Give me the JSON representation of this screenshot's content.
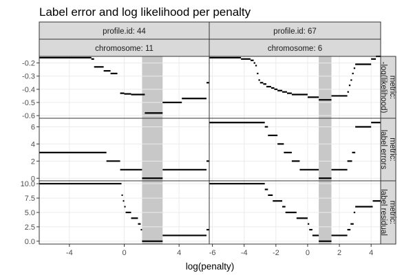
{
  "chart_data": {
    "type": "line",
    "title": "Label error and log likelihood per penalty",
    "xlabel": "log(penalty)",
    "ylabel": "",
    "grid": true,
    "legend": "none",
    "columns": [
      {
        "profile_label": "profile.id: 44",
        "chromosome_label": "chromosome: 11",
        "xlim": [
          -6.2,
          6.2
        ],
        "x_ticks": [
          -4,
          0,
          4
        ],
        "x_tick_labels": [
          "-4",
          "0",
          "4"
        ],
        "min_error_interval": [
          1.3,
          2.8
        ]
      },
      {
        "profile_label": "profile.id: 67",
        "chromosome_label": "chromosome: 6",
        "xlim": [
          -6.2,
          4.6
        ],
        "x_ticks": [
          -6,
          -4,
          -2,
          0,
          2,
          4
        ],
        "x_tick_labels": [
          "-6",
          "-4",
          "-2",
          "0",
          "2",
          "4"
        ],
        "min_error_interval": [
          0.7,
          1.5
        ]
      }
    ],
    "rows": [
      {
        "label_line1": "metric:",
        "label_line2": "-log(likelihood)",
        "ylim": [
          -0.62,
          -0.15
        ],
        "y_ticks": [
          -0.2,
          -0.3,
          -0.4,
          -0.5,
          -0.6
        ],
        "y_tick_labels": [
          "-0.2",
          "-0.3",
          "-0.4",
          "-0.5",
          "-0.6"
        ]
      },
      {
        "label_line1": "metric:",
        "label_line2": "label errors",
        "ylim": [
          -0.3,
          7.0
        ],
        "y_ticks": [
          0,
          2,
          4,
          6
        ],
        "y_tick_labels": [
          "0",
          "2",
          "4",
          "6"
        ]
      },
      {
        "label_line1": "metric:",
        "label_line2": "label residual",
        "ylim": [
          -0.5,
          10.5
        ],
        "y_ticks": [
          0,
          2.5,
          5,
          7.5,
          10
        ],
        "y_tick_labels": [
          "0.0",
          "2.5",
          "5.0",
          "7.5",
          "10.0"
        ]
      }
    ],
    "series": [
      {
        "row": 0,
        "col": 0,
        "segments": [
          [
            -6.2,
            -0.16,
            -2.4
          ],
          [
            -2.4,
            -0.17,
            -2.2
          ],
          [
            -2.2,
            -0.23,
            -1.5
          ],
          [
            -1.5,
            -0.26,
            -1.0
          ],
          [
            -1.0,
            -0.28,
            -0.5
          ],
          [
            -0.3,
            -0.43,
            0.0
          ],
          [
            0.0,
            -0.435,
            0.5
          ],
          [
            0.5,
            -0.44,
            1.5
          ],
          [
            1.5,
            -0.58,
            2.8
          ],
          [
            2.8,
            -0.5,
            4.2
          ],
          [
            4.2,
            -0.47,
            6.0
          ],
          [
            6.0,
            -0.35,
            6.2
          ]
        ]
      },
      {
        "row": 0,
        "col": 1,
        "segments": [
          [
            -6.2,
            -0.16,
            -4.2
          ],
          [
            -4.2,
            -0.17,
            -3.6
          ],
          [
            -3.6,
            -0.18,
            -3.4
          ],
          [
            -3.4,
            -0.2,
            -3.3
          ],
          [
            -3.3,
            -0.22,
            -3.2
          ],
          [
            -3.2,
            -0.28,
            -3.1
          ],
          [
            -3.1,
            -0.33,
            -3.0
          ],
          [
            -3.0,
            -0.35,
            -2.8
          ],
          [
            -2.8,
            -0.36,
            -2.6
          ],
          [
            -2.6,
            -0.38,
            -2.3
          ],
          [
            -2.3,
            -0.39,
            -2.1
          ],
          [
            -2.1,
            -0.4,
            -1.9
          ],
          [
            -1.9,
            -0.41,
            -1.6
          ],
          [
            -1.6,
            -0.42,
            -1.3
          ],
          [
            -1.3,
            -0.43,
            -1.0
          ],
          [
            -1.0,
            -0.44,
            0.0
          ],
          [
            0.0,
            -0.46,
            0.7
          ],
          [
            0.7,
            -0.48,
            1.5
          ],
          [
            1.5,
            -0.45,
            2.5
          ],
          [
            2.5,
            -0.42,
            2.6
          ],
          [
            2.6,
            -0.37,
            2.7
          ],
          [
            2.7,
            -0.33,
            2.8
          ],
          [
            2.8,
            -0.28,
            2.9
          ],
          [
            2.9,
            -0.24,
            3.0
          ],
          [
            3.0,
            -0.21,
            4.0
          ],
          [
            4.0,
            -0.17,
            4.3
          ],
          [
            4.3,
            -0.15,
            4.6
          ]
        ]
      },
      {
        "row": 1,
        "col": 0,
        "segments": [
          [
            -6.2,
            3,
            -1.3
          ],
          [
            -1.3,
            2,
            -0.3
          ],
          [
            -0.3,
            1,
            1.3
          ],
          [
            1.3,
            0,
            2.8
          ],
          [
            2.8,
            1,
            6.0
          ],
          [
            6.0,
            2,
            6.2
          ]
        ]
      },
      {
        "row": 1,
        "col": 1,
        "segments": [
          [
            -6.2,
            6.5,
            -2.7
          ],
          [
            -2.7,
            6,
            -2.5
          ],
          [
            -2.5,
            5,
            -1.9
          ],
          [
            -1.9,
            4,
            -1.5
          ],
          [
            -1.5,
            3,
            -1.0
          ],
          [
            -1.0,
            2,
            -0.5
          ],
          [
            -0.5,
            1,
            0.7
          ],
          [
            0.7,
            0,
            1.5
          ],
          [
            1.5,
            1,
            2.5
          ],
          [
            2.5,
            2,
            2.8
          ],
          [
            2.8,
            3,
            3.0
          ],
          [
            3.0,
            4,
            3.0
          ],
          [
            3.0,
            6,
            4.0
          ],
          [
            4.0,
            6.5,
            4.6
          ]
        ]
      },
      {
        "row": 2,
        "col": 0,
        "segments": [
          [
            -6.2,
            10,
            -0.2
          ],
          [
            -0.2,
            8,
            -0.1
          ],
          [
            -0.1,
            7,
            0.0
          ],
          [
            0.0,
            6,
            0.1
          ],
          [
            0.1,
            5,
            0.5
          ],
          [
            0.5,
            4,
            1.0
          ],
          [
            1.0,
            3,
            1.2
          ],
          [
            1.2,
            2,
            1.3
          ],
          [
            1.3,
            0,
            2.8
          ],
          [
            2.8,
            1,
            6.0
          ],
          [
            6.0,
            2,
            6.2
          ]
        ]
      },
      {
        "row": 2,
        "col": 1,
        "segments": [
          [
            -6.2,
            10,
            -2.7
          ],
          [
            -2.7,
            9,
            -2.5
          ],
          [
            -2.5,
            8,
            -2.2
          ],
          [
            -2.2,
            7,
            -1.6
          ],
          [
            -1.6,
            6,
            -1.4
          ],
          [
            -1.4,
            5,
            -0.7
          ],
          [
            -0.7,
            4,
            0.0
          ],
          [
            0.0,
            3,
            0.1
          ],
          [
            0.1,
            2,
            0.3
          ],
          [
            0.3,
            1,
            0.7
          ],
          [
            0.7,
            0,
            1.5
          ],
          [
            1.5,
            1,
            2.5
          ],
          [
            2.5,
            2,
            2.7
          ],
          [
            2.7,
            3,
            2.9
          ],
          [
            2.9,
            5,
            3.0
          ],
          [
            3.0,
            6,
            4.1
          ],
          [
            4.1,
            7,
            4.6
          ]
        ]
      }
    ]
  },
  "colors": {
    "line": "#000000",
    "panel_bg": "#ffffff",
    "grid": "#ebebeb",
    "strip_bg": "#d9d9d9",
    "strip_border": "#333333",
    "shade": "#c8c8c8"
  }
}
